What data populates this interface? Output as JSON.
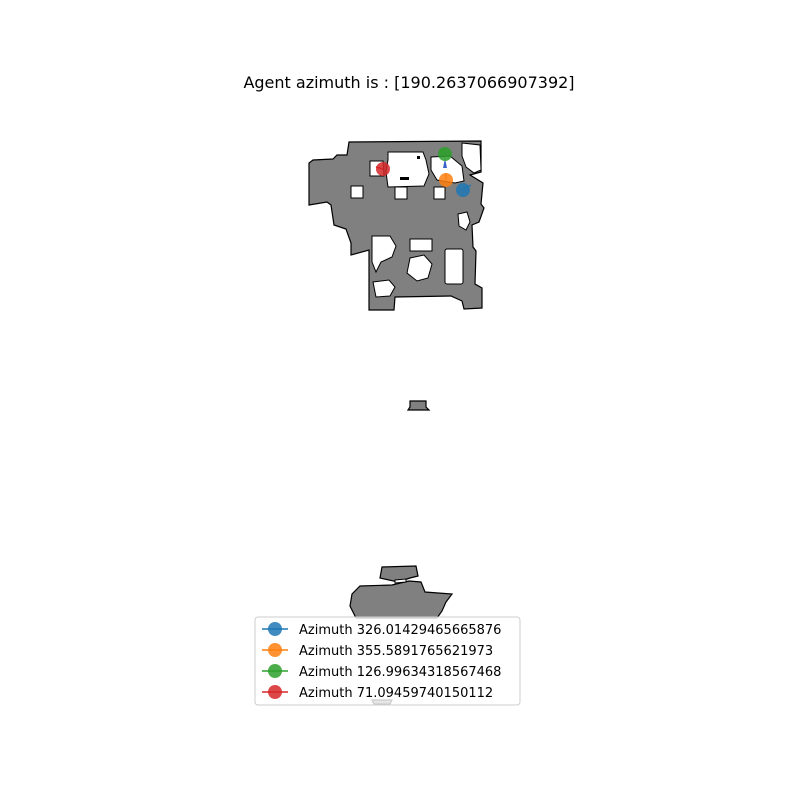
{
  "title": "Agent azimuth is : [190.2637066907392]",
  "agent": {
    "color": "#3a63c8"
  },
  "markers": [
    {
      "name": "Azimuth 326.01429465665876",
      "color": "#1f77b4"
    },
    {
      "name": "Azimuth 355.5891765621973",
      "color": "#ff7f0e"
    },
    {
      "name": "Azimuth 126.99634318567468",
      "color": "#2ca02c"
    },
    {
      "name": "Azimuth 71.09459740150112",
      "color": "#d62728"
    }
  ],
  "map": {
    "floor_color": "#808080",
    "wall_color": "#000000",
    "free_color": "#ffffff"
  }
}
